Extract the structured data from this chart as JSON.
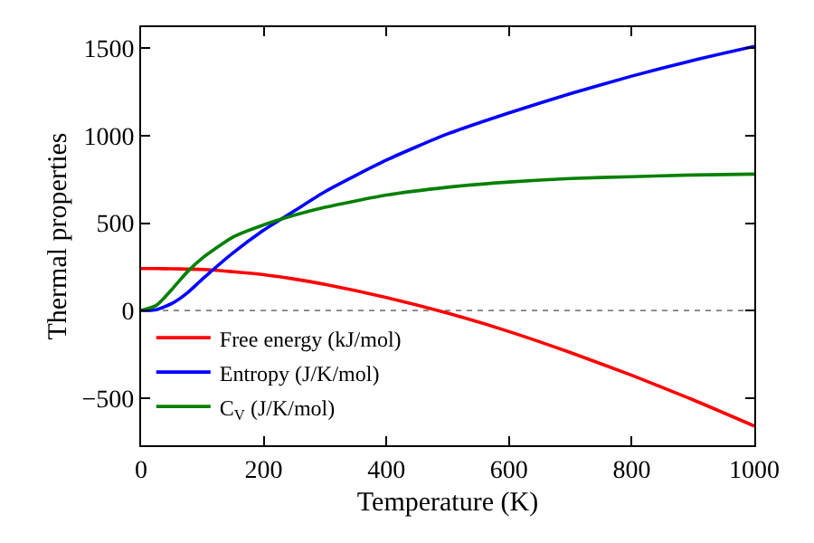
{
  "chart_data": {
    "type": "line",
    "xlabel": "Temperature (K)",
    "ylabel": "Thermal properties",
    "xlim": [
      0,
      1000
    ],
    "xticks": [
      0,
      200,
      400,
      600,
      800,
      1000
    ],
    "ylim": [
      -770,
      1620
    ],
    "yticks": [
      {
        "value": -500,
        "label": "−500"
      },
      0,
      500,
      1000,
      1500
    ],
    "x": [
      0,
      25,
      50,
      75,
      100,
      150,
      200,
      250,
      300,
      400,
      500,
      600,
      700,
      800,
      900,
      1000
    ],
    "series": [
      {
        "name": "Free energy (kJ/mol)",
        "color": "#ff0000",
        "values": [
          240,
          240,
          239,
          237,
          235,
          222,
          205,
          180,
          150,
          75,
          -15,
          -120,
          -240,
          -370,
          -510,
          -660
        ]
      },
      {
        "name": "Entropy (J/K/mol)",
        "color": "#0000ff",
        "values": [
          0,
          5,
          40,
          100,
          180,
          330,
          460,
          570,
          680,
          860,
          1010,
          1130,
          1240,
          1340,
          1430,
          1510
        ]
      },
      {
        "name": "C$_{V}$ (J/K/mol)",
        "color": "#008000",
        "values": [
          0,
          30,
          120,
          220,
          300,
          420,
          490,
          545,
          590,
          660,
          705,
          735,
          755,
          765,
          775,
          780
        ]
      }
    ],
    "ref_lines": [
      {
        "axis": "y",
        "value": 0,
        "color": "#808080",
        "line_style": "dotted"
      }
    ],
    "legend": "bottom left",
    "grid": false,
    "marker": "none",
    "line_style": "solid"
  }
}
